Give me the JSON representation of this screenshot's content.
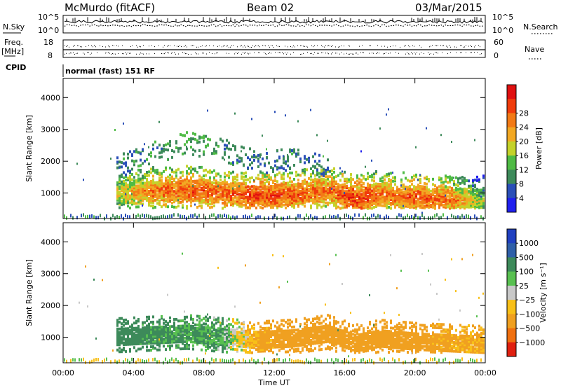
{
  "header": {
    "title_left": "McMurdo (fitACF)",
    "title_center": "Beam 02",
    "title_right": "03/Mar/2015"
  },
  "top_panels": {
    "nsky_label": "N.Sky",
    "nsky_ticks": [
      "10^5",
      "10^0"
    ],
    "nsearch_label": "N.Search",
    "nsearch_ticks": [
      "10^5",
      "10^0"
    ],
    "freq_label": "Freq.",
    "freq_unit": "[MHz]",
    "freq_ticks": [
      "18",
      "8"
    ],
    "nave_label": "Nave",
    "nave_ticks": [
      "60",
      "0"
    ],
    "cpid_label": "CPID",
    "cpid_text": "normal (fast) 151 RF"
  },
  "colors": {
    "power": [
      "#2020ee",
      "#2a4fb8",
      "#3d8a5a",
      "#4fbb45",
      "#c4d22a",
      "#f2a823",
      "#f27a16",
      "#f03c0c",
      "#e01010"
    ],
    "velocity": [
      "#2040c0",
      "#2f5fa8",
      "#3d8a5a",
      "#58c050",
      "#c8c8c8",
      "#f8c018",
      "#f0a020",
      "#f07010",
      "#e02010"
    ]
  },
  "chart_data": [
    {
      "type": "heatmap",
      "title": "",
      "xlabel": "Time UT",
      "ylabel": "Slant Range [km]",
      "x_ticks": [
        "00:00",
        "04:00",
        "08:00",
        "12:00",
        "16:00",
        "20:00",
        "00:00"
      ],
      "y_ticks": [
        1000,
        2000,
        3000,
        4000
      ],
      "xlim_hours": [
        0,
        24
      ],
      "ylim_km": [
        200,
        4600
      ],
      "colorbar": {
        "label": "Power [dB]",
        "ticks": [
          "4",
          "8",
          "12",
          "16",
          "20",
          "24",
          "28"
        ]
      },
      "series": [
        {
          "name": "main",
          "x": [
            3.2,
            5,
            7,
            9,
            11,
            13,
            15,
            16.6,
            18,
            20,
            22,
            24
          ],
          "y": [
            1050,
            1100,
            1150,
            1050,
            950,
            1000,
            1150,
            850,
            1000,
            900,
            850,
            800
          ],
          "values": [
            18,
            24,
            26,
            25,
            27,
            26,
            24,
            28,
            24,
            26,
            24,
            14
          ]
        },
        {
          "name": "upper",
          "x": [
            3,
            5,
            7,
            9,
            11,
            13,
            15
          ],
          "y": [
            2100,
            2300,
            2600,
            2400,
            2000,
            2100,
            1900
          ],
          "values": [
            5,
            6,
            8,
            6,
            4,
            5,
            4
          ]
        }
      ]
    },
    {
      "type": "heatmap",
      "title": "",
      "xlabel": "Time UT",
      "ylabel": "Slant Range [km]",
      "x_ticks": [
        "00:00",
        "04:00",
        "08:00",
        "12:00",
        "16:00",
        "20:00",
        "00:00"
      ],
      "y_ticks": [
        1000,
        2000,
        3000,
        4000
      ],
      "xlim_hours": [
        0,
        24
      ],
      "ylim_km": [
        200,
        4600
      ],
      "colorbar": {
        "label": "Velocity [m s⁻¹]",
        "ticks": [
          "1000",
          "500",
          "100",
          "25",
          "−25",
          "−100",
          "−500",
          "−1000"
        ]
      },
      "series": [
        {
          "name": "main",
          "x": [
            3.2,
            5,
            7,
            9,
            11,
            13,
            15,
            16.6,
            18,
            20,
            22,
            24
          ],
          "y": [
            1050,
            1100,
            1150,
            1050,
            950,
            1000,
            1150,
            850,
            1000,
            900,
            850,
            800
          ],
          "values": [
            200,
            150,
            120,
            100,
            -150,
            -200,
            -250,
            -250,
            -200,
            -200,
            -150,
            -100
          ]
        }
      ]
    }
  ]
}
